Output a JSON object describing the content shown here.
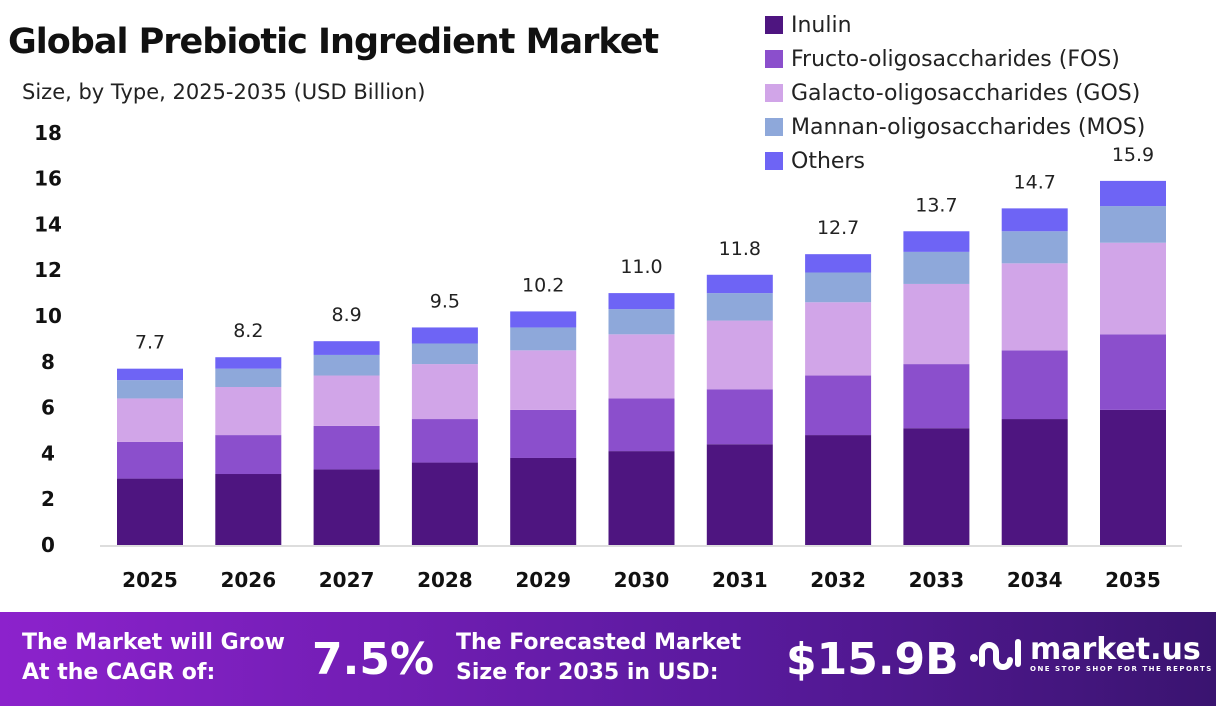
{
  "chart_data": {
    "type": "bar",
    "stacked": true,
    "title": "Global Prebiotic Ingredient Market",
    "subtitle": "Size, by Type, 2025-2035 (USD Billion)",
    "categories": [
      "2025",
      "2026",
      "2027",
      "2028",
      "2029",
      "2030",
      "2031",
      "2032",
      "2033",
      "2034",
      "2035"
    ],
    "totals": [
      "7.7",
      "8.2",
      "8.9",
      "9.5",
      "10.2",
      "11.0",
      "11.8",
      "12.7",
      "13.7",
      "14.7",
      "15.9"
    ],
    "series": [
      {
        "name": "Inulin",
        "color": "#4e1580",
        "values": [
          2.9,
          3.1,
          3.3,
          3.6,
          3.8,
          4.1,
          4.4,
          4.8,
          5.1,
          5.5,
          5.9
        ]
      },
      {
        "name": "Fructo-oligosaccharides (FOS)",
        "color": "#8b4fcc",
        "values": [
          1.6,
          1.7,
          1.9,
          1.9,
          2.1,
          2.3,
          2.4,
          2.6,
          2.8,
          3.0,
          3.3
        ]
      },
      {
        "name": "Galacto-oligosaccharides (GOS)",
        "color": "#d1a5e8",
        "values": [
          1.9,
          2.1,
          2.2,
          2.4,
          2.6,
          2.8,
          3.0,
          3.2,
          3.5,
          3.8,
          4.0
        ]
      },
      {
        "name": "Mannan-oligosaccharides (MOS)",
        "color": "#8ea8da",
        "values": [
          0.8,
          0.8,
          0.9,
          0.9,
          1.0,
          1.1,
          1.2,
          1.3,
          1.4,
          1.4,
          1.6
        ]
      },
      {
        "name": "Others",
        "color": "#6e64f5",
        "values": [
          0.5,
          0.5,
          0.6,
          0.7,
          0.7,
          0.7,
          0.8,
          0.8,
          0.9,
          1.0,
          1.1
        ]
      }
    ],
    "yticks": [
      "0",
      "2",
      "4",
      "6",
      "8",
      "10",
      "12",
      "14",
      "16",
      "18"
    ],
    "ylim": [
      0,
      18
    ],
    "grid": false,
    "legend": "top-right"
  },
  "footer": {
    "cagr_label_1": "The Market will Grow",
    "cagr_label_2": "At the CAGR of:",
    "cagr": "7.5%",
    "size_label_1": "The Forecasted Market",
    "size_label_2": "Size for 2035 in USD:",
    "size": "$15.9B",
    "logo_name": "market.us",
    "logo_tagline": "ONE STOP SHOP FOR THE REPORTS"
  }
}
